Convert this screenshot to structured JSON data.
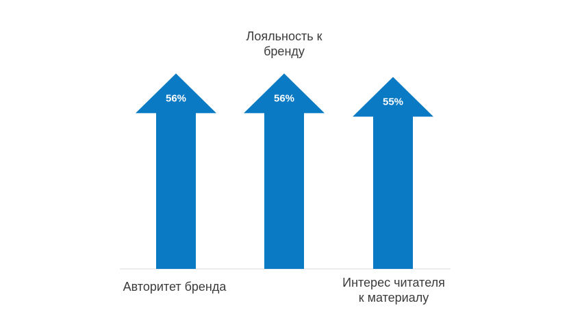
{
  "chart_data": {
    "type": "bar",
    "categories": [
      "Авторитет бренда",
      "Лояльность к\nбренду",
      "Интерес читателя\nк материалу"
    ],
    "values": [
      56,
      56,
      55
    ],
    "value_labels": [
      "56%",
      "56%",
      "55%"
    ],
    "unit": "%",
    "bar_color": "#0a7ac4",
    "baseline_color": "#d9d9d9",
    "label_color": "#3a3a3a",
    "value_label_color": "#ffffff"
  }
}
